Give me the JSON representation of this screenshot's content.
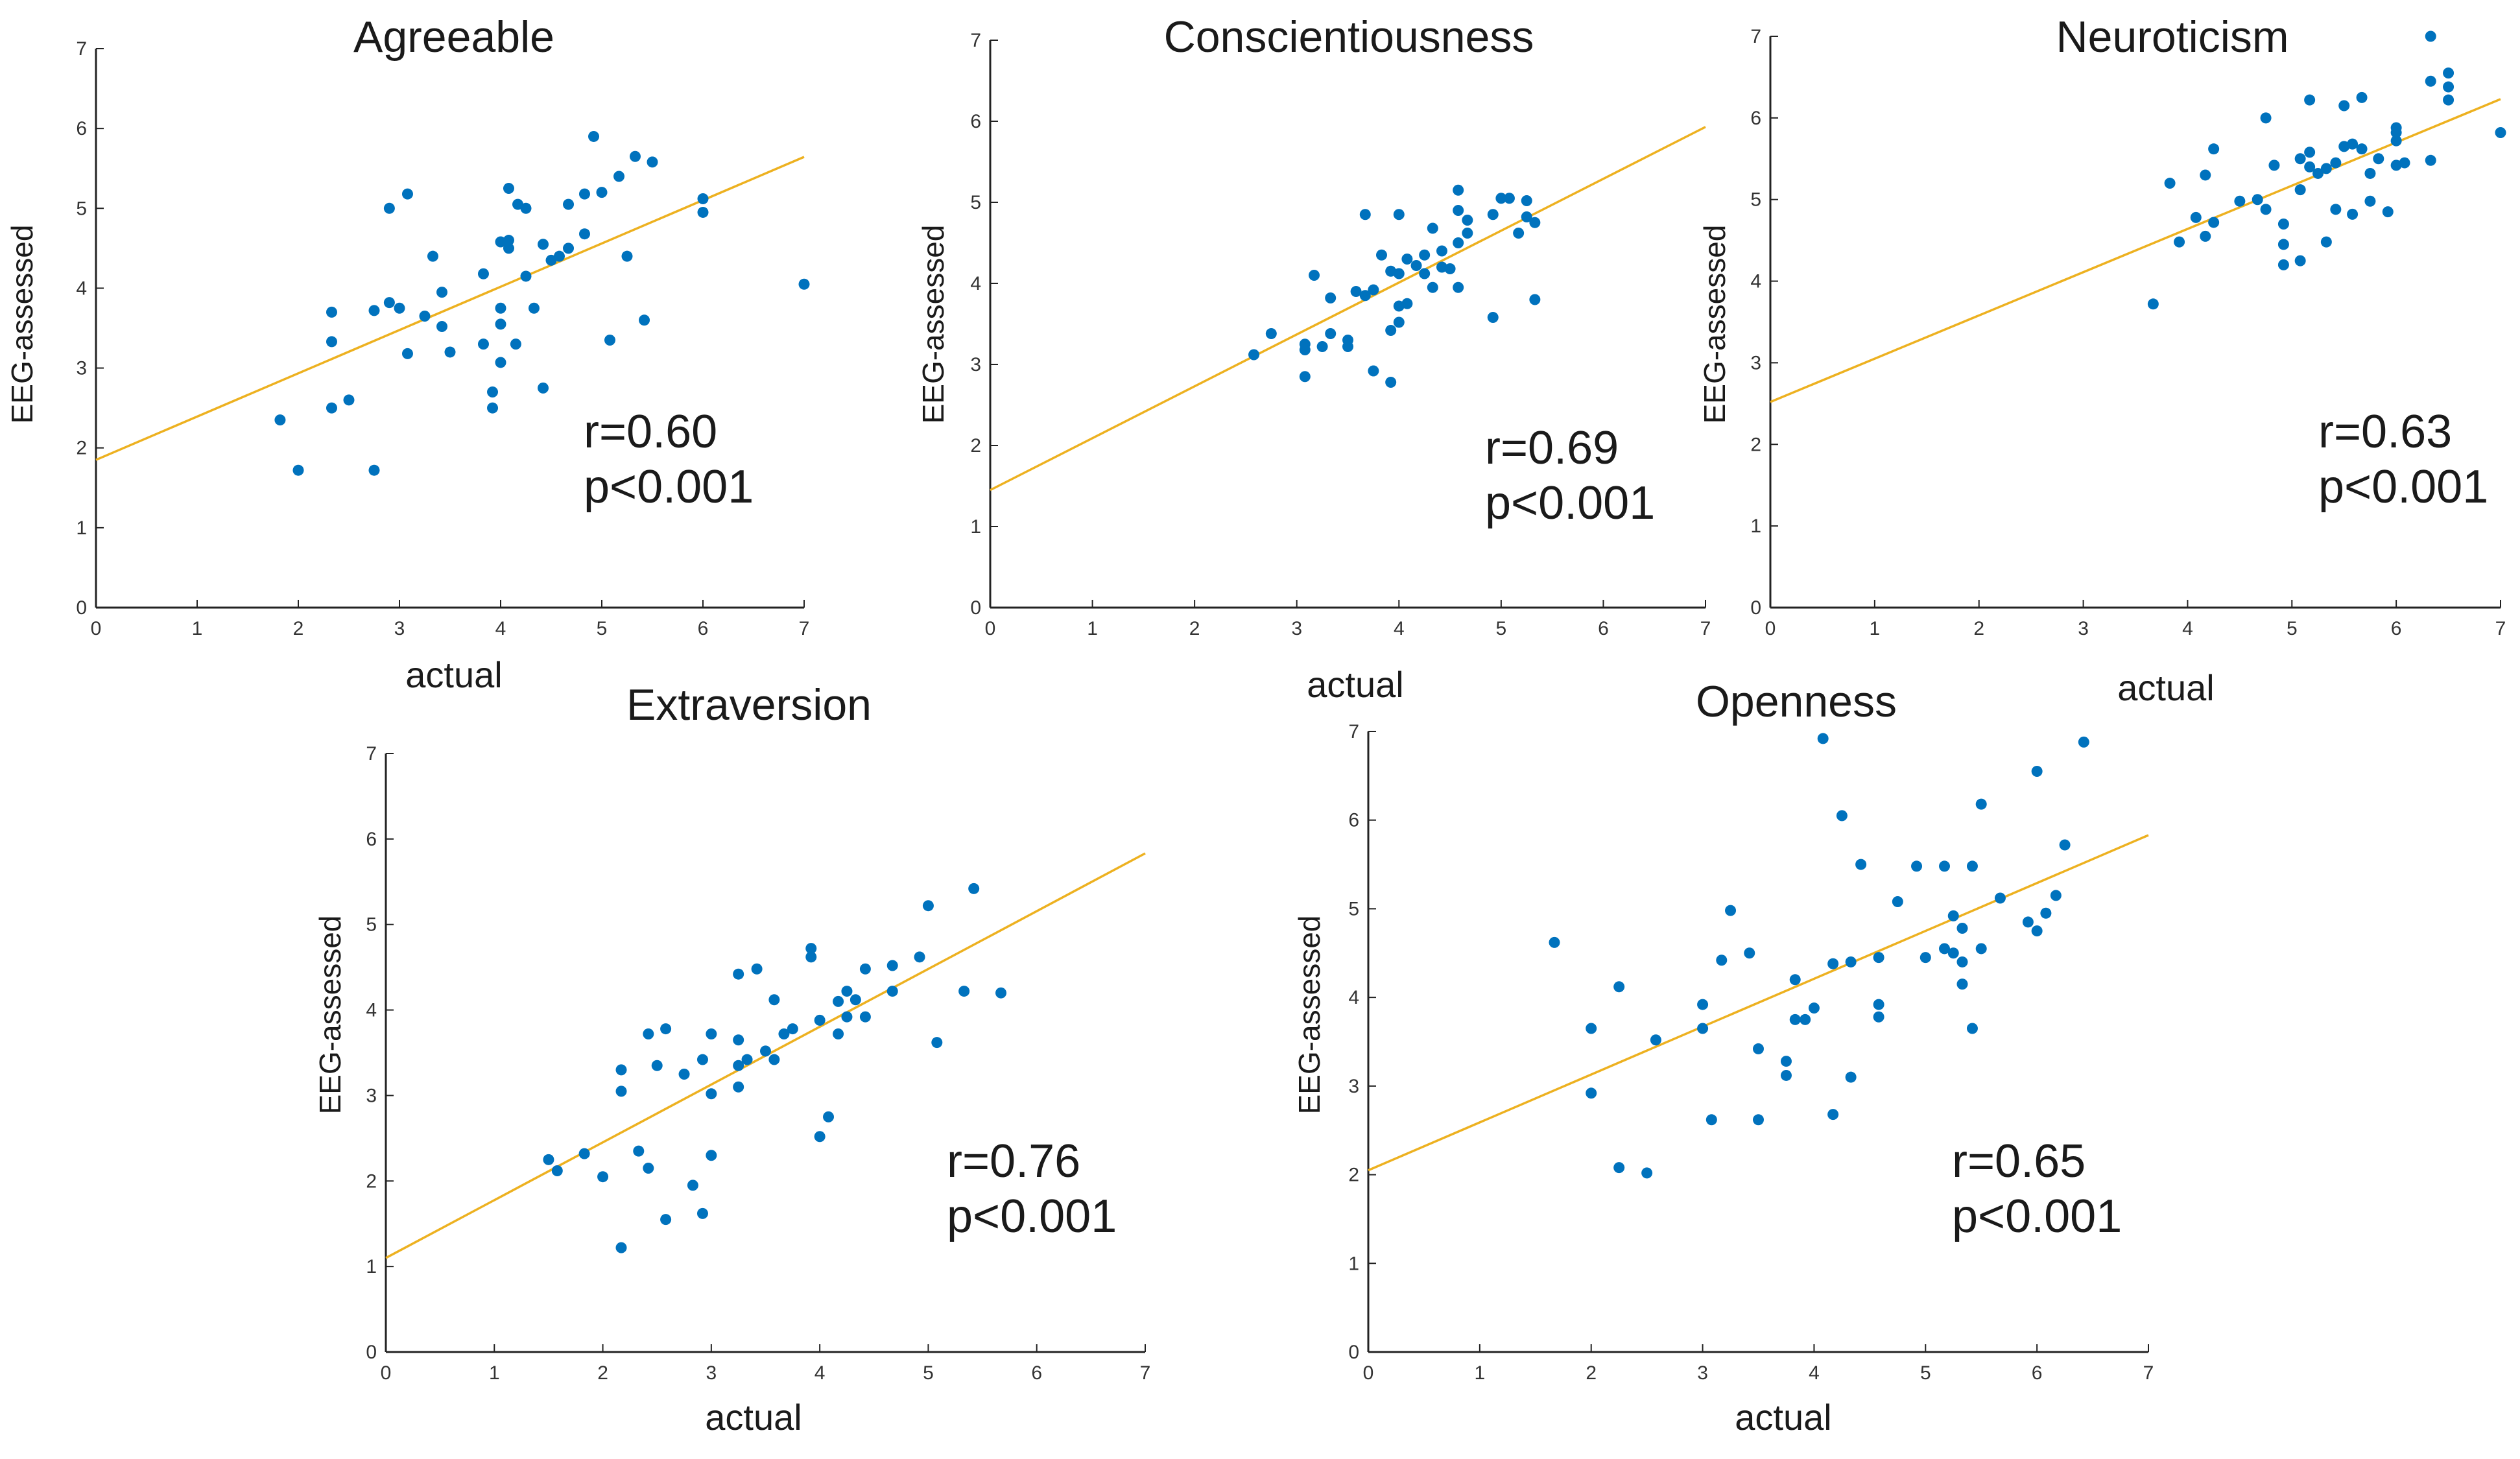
{
  "colors": {
    "points": "#0072BD",
    "fit_line": "#EDB120",
    "axes": "#222222"
  },
  "chart_data": [
    {
      "type": "scatter",
      "title": "Agreeable",
      "xlabel": "actual",
      "ylabel": "EEG-assessed",
      "xlim": [
        0,
        7
      ],
      "ylim": [
        0,
        7
      ],
      "xticks": [
        "0",
        "1",
        "2",
        "3",
        "4",
        "5",
        "6",
        "7"
      ],
      "yticks": [
        "0",
        "1",
        "2",
        "3",
        "4",
        "5",
        "6",
        "7"
      ],
      "r_text": "r=0.60",
      "p_text": "p<0.001",
      "fit": {
        "intercept": 1.85,
        "slope": 0.542
      },
      "points": [
        [
          1.82,
          2.35
        ],
        [
          2.0,
          1.72
        ],
        [
          2.33,
          3.7
        ],
        [
          2.33,
          3.33
        ],
        [
          2.33,
          2.5
        ],
        [
          2.5,
          2.6
        ],
        [
          2.75,
          1.72
        ],
        [
          2.75,
          3.72
        ],
        [
          2.9,
          3.82
        ],
        [
          2.9,
          5.0
        ],
        [
          3.0,
          3.75
        ],
        [
          3.08,
          5.18
        ],
        [
          3.08,
          3.18
        ],
        [
          3.25,
          3.65
        ],
        [
          3.33,
          4.4
        ],
        [
          3.42,
          3.95
        ],
        [
          3.42,
          3.52
        ],
        [
          3.5,
          3.2
        ],
        [
          3.83,
          4.18
        ],
        [
          3.83,
          3.3
        ],
        [
          3.92,
          2.7
        ],
        [
          3.92,
          2.5
        ],
        [
          4.0,
          4.58
        ],
        [
          4.0,
          3.75
        ],
        [
          4.0,
          3.55
        ],
        [
          4.0,
          3.07
        ],
        [
          4.08,
          5.25
        ],
        [
          4.08,
          4.6
        ],
        [
          4.08,
          4.5
        ],
        [
          4.15,
          3.3
        ],
        [
          4.17,
          5.05
        ],
        [
          4.25,
          5.0
        ],
        [
          4.25,
          4.15
        ],
        [
          4.33,
          3.75
        ],
        [
          4.42,
          4.55
        ],
        [
          4.42,
          2.75
        ],
        [
          4.5,
          4.35
        ],
        [
          4.58,
          4.4
        ],
        [
          4.67,
          4.5
        ],
        [
          4.67,
          5.05
        ],
        [
          4.83,
          4.68
        ],
        [
          4.83,
          5.18
        ],
        [
          4.92,
          5.9
        ],
        [
          5.0,
          5.2
        ],
        [
          5.08,
          3.35
        ],
        [
          5.17,
          5.4
        ],
        [
          5.25,
          4.4
        ],
        [
          5.33,
          5.65
        ],
        [
          5.42,
          3.6
        ],
        [
          5.5,
          5.58
        ],
        [
          6.0,
          5.12
        ],
        [
          6.0,
          4.95
        ],
        [
          7.0,
          4.05
        ]
      ]
    },
    {
      "type": "scatter",
      "title": "Conscientiousness",
      "xlabel": "actual",
      "ylabel": "EEG-assessed",
      "xlim": [
        0,
        7
      ],
      "ylim": [
        0,
        7
      ],
      "xticks": [
        "0",
        "1",
        "2",
        "3",
        "4",
        "5",
        "6",
        "7"
      ],
      "yticks": [
        "0",
        "1",
        "2",
        "3",
        "4",
        "5",
        "6",
        "7"
      ],
      "r_text": "r=0.69",
      "p_text": "p<0.001",
      "fit": {
        "intercept": 1.45,
        "slope": 0.64
      },
      "points": [
        [
          2.58,
          3.12
        ],
        [
          2.75,
          3.38
        ],
        [
          3.08,
          3.25
        ],
        [
          3.08,
          3.18
        ],
        [
          3.08,
          2.85
        ],
        [
          3.17,
          4.1
        ],
        [
          3.25,
          3.22
        ],
        [
          3.33,
          3.38
        ],
        [
          3.33,
          3.82
        ],
        [
          3.5,
          3.3
        ],
        [
          3.5,
          3.22
        ],
        [
          3.58,
          3.9
        ],
        [
          3.67,
          4.85
        ],
        [
          3.67,
          3.85
        ],
        [
          3.75,
          3.92
        ],
        [
          3.75,
          2.92
        ],
        [
          3.83,
          4.35
        ],
        [
          3.92,
          2.78
        ],
        [
          3.92,
          3.42
        ],
        [
          3.92,
          4.15
        ],
        [
          4.0,
          4.85
        ],
        [
          4.0,
          4.12
        ],
        [
          4.0,
          3.52
        ],
        [
          4.0,
          3.72
        ],
        [
          4.08,
          3.75
        ],
        [
          4.08,
          4.3
        ],
        [
          4.17,
          4.22
        ],
        [
          4.25,
          4.35
        ],
        [
          4.25,
          4.12
        ],
        [
          4.33,
          4.68
        ],
        [
          4.33,
          3.95
        ],
        [
          4.42,
          4.4
        ],
        [
          4.42,
          4.2
        ],
        [
          4.5,
          4.18
        ],
        [
          4.58,
          4.9
        ],
        [
          4.58,
          4.5
        ],
        [
          4.58,
          3.95
        ],
        [
          4.67,
          4.78
        ],
        [
          4.67,
          4.62
        ],
        [
          4.92,
          3.58
        ],
        [
          4.92,
          4.85
        ],
        [
          5.0,
          5.05
        ],
        [
          5.08,
          5.05
        ],
        [
          5.17,
          4.62
        ],
        [
          5.25,
          4.82
        ],
        [
          5.25,
          5.02
        ],
        [
          5.33,
          3.8
        ],
        [
          5.33,
          4.75
        ],
        [
          4.58,
          5.15
        ]
      ]
    },
    {
      "type": "scatter",
      "title": "Neuroticism",
      "xlabel": "actual",
      "ylabel": "EEG-assessed",
      "xlim": [
        0,
        7
      ],
      "ylim": [
        0,
        7
      ],
      "xticks": [
        "0",
        "1",
        "2",
        "3",
        "4",
        "5",
        "6",
        "7"
      ],
      "yticks": [
        "0",
        "1",
        "2",
        "3",
        "4",
        "5",
        "6",
        "7"
      ],
      "r_text": "r=0.63",
      "p_text": "p<0.001",
      "fit": {
        "intercept": 2.52,
        "slope": 0.53
      },
      "points": [
        [
          3.67,
          3.72
        ],
        [
          3.83,
          5.2
        ],
        [
          3.92,
          4.48
        ],
        [
          4.08,
          4.78
        ],
        [
          4.17,
          5.3
        ],
        [
          4.17,
          4.55
        ],
        [
          4.25,
          4.72
        ],
        [
          4.25,
          5.62
        ],
        [
          4.5,
          4.98
        ],
        [
          4.67,
          5.0
        ],
        [
          4.75,
          6.0
        ],
        [
          4.75,
          4.88
        ],
        [
          4.83,
          5.42
        ],
        [
          4.92,
          4.45
        ],
        [
          4.92,
          4.7
        ],
        [
          4.92,
          4.2
        ],
        [
          5.08,
          5.12
        ],
        [
          5.08,
          5.5
        ],
        [
          5.08,
          4.25
        ],
        [
          5.17,
          5.4
        ],
        [
          5.17,
          5.58
        ],
        [
          5.17,
          6.22
        ],
        [
          5.25,
          5.32
        ],
        [
          5.33,
          4.48
        ],
        [
          5.33,
          5.38
        ],
        [
          5.42,
          5.45
        ],
        [
          5.42,
          4.88
        ],
        [
          5.5,
          6.15
        ],
        [
          5.5,
          5.65
        ],
        [
          5.58,
          5.68
        ],
        [
          5.58,
          4.82
        ],
        [
          5.67,
          6.25
        ],
        [
          5.67,
          5.62
        ],
        [
          5.75,
          4.98
        ],
        [
          5.75,
          5.32
        ],
        [
          5.83,
          5.5
        ],
        [
          5.92,
          4.85
        ],
        [
          6.0,
          5.88
        ],
        [
          6.0,
          5.82
        ],
        [
          6.0,
          5.72
        ],
        [
          6.0,
          5.42
        ],
        [
          6.08,
          5.45
        ],
        [
          6.33,
          5.48
        ],
        [
          6.33,
          6.45
        ],
        [
          6.33,
          7.0
        ],
        [
          6.5,
          6.55
        ],
        [
          6.5,
          6.38
        ],
        [
          6.5,
          6.22
        ],
        [
          7.0,
          5.82
        ]
      ]
    },
    {
      "type": "scatter",
      "title": "Extraversion",
      "xlabel": "actual",
      "ylabel": "EEG-assessed",
      "xlim": [
        0,
        7
      ],
      "ylim": [
        0,
        7
      ],
      "xticks": [
        "0",
        "1",
        "2",
        "3",
        "4",
        "5",
        "6",
        "7"
      ],
      "yticks": [
        "0",
        "1",
        "2",
        "3",
        "4",
        "5",
        "6",
        "7"
      ],
      "r_text": "r=0.76",
      "p_text": "p<0.001",
      "fit": {
        "intercept": 1.1,
        "slope": 0.676
      },
      "points": [
        [
          1.5,
          2.25
        ],
        [
          1.58,
          2.12
        ],
        [
          1.83,
          2.32
        ],
        [
          2.0,
          2.05
        ],
        [
          2.17,
          3.3
        ],
        [
          2.17,
          3.05
        ],
        [
          2.17,
          1.22
        ],
        [
          2.33,
          2.35
        ],
        [
          2.42,
          3.72
        ],
        [
          2.42,
          2.15
        ],
        [
          2.5,
          3.35
        ],
        [
          2.58,
          3.78
        ],
        [
          2.58,
          1.55
        ],
        [
          2.75,
          3.25
        ],
        [
          2.83,
          1.95
        ],
        [
          2.92,
          3.42
        ],
        [
          2.92,
          1.62
        ],
        [
          3.0,
          3.72
        ],
        [
          3.0,
          3.02
        ],
        [
          3.0,
          2.3
        ],
        [
          3.25,
          4.42
        ],
        [
          3.25,
          3.65
        ],
        [
          3.25,
          3.35
        ],
        [
          3.25,
          3.1
        ],
        [
          3.33,
          3.42
        ],
        [
          3.42,
          4.48
        ],
        [
          3.5,
          3.52
        ],
        [
          3.58,
          3.42
        ],
        [
          3.58,
          4.12
        ],
        [
          3.67,
          3.72
        ],
        [
          3.75,
          3.78
        ],
        [
          3.92,
          4.72
        ],
        [
          3.92,
          4.62
        ],
        [
          4.0,
          3.88
        ],
        [
          4.0,
          2.52
        ],
        [
          4.08,
          2.75
        ],
        [
          4.17,
          4.1
        ],
        [
          4.17,
          3.72
        ],
        [
          4.25,
          3.92
        ],
        [
          4.25,
          4.22
        ],
        [
          4.33,
          4.12
        ],
        [
          4.42,
          3.92
        ],
        [
          4.42,
          4.48
        ],
        [
          4.67,
          4.52
        ],
        [
          4.92,
          4.62
        ],
        [
          5.0,
          5.22
        ],
        [
          5.08,
          3.62
        ],
        [
          5.33,
          4.22
        ],
        [
          5.42,
          5.42
        ],
        [
          5.67,
          4.2
        ],
        [
          4.67,
          4.22
        ]
      ]
    },
    {
      "type": "scatter",
      "title": "Openness",
      "xlabel": "actual",
      "ylabel": "EEG-assessed",
      "xlim": [
        0,
        7
      ],
      "ylim": [
        0,
        7
      ],
      "xticks": [
        "0",
        "1",
        "2",
        "3",
        "4",
        "5",
        "6",
        "7"
      ],
      "yticks": [
        "0",
        "1",
        "2",
        "3",
        "4",
        "5",
        "6",
        "7"
      ],
      "r_text": "r=0.65",
      "p_text": "p<0.001",
      "fit": {
        "intercept": 2.05,
        "slope": 0.54
      },
      "points": [
        [
          1.67,
          4.62
        ],
        [
          2.0,
          3.65
        ],
        [
          2.0,
          2.92
        ],
        [
          2.25,
          4.12
        ],
        [
          2.25,
          2.08
        ],
        [
          2.5,
          2.02
        ],
        [
          2.58,
          3.52
        ],
        [
          3.0,
          3.92
        ],
        [
          3.0,
          3.65
        ],
        [
          3.08,
          2.62
        ],
        [
          3.17,
          4.42
        ],
        [
          3.25,
          4.98
        ],
        [
          3.42,
          4.5
        ],
        [
          3.5,
          3.42
        ],
        [
          3.5,
          2.62
        ],
        [
          3.75,
          3.28
        ],
        [
          3.75,
          3.12
        ],
        [
          3.83,
          4.2
        ],
        [
          3.83,
          3.75
        ],
        [
          3.92,
          3.75
        ],
        [
          4.0,
          3.88
        ],
        [
          4.08,
          6.92
        ],
        [
          4.17,
          4.38
        ],
        [
          4.17,
          2.68
        ],
        [
          4.25,
          6.05
        ],
        [
          4.33,
          4.4
        ],
        [
          4.33,
          3.1
        ],
        [
          4.42,
          5.5
        ],
        [
          4.58,
          4.45
        ],
        [
          4.58,
          3.92
        ],
        [
          4.58,
          3.78
        ],
        [
          4.75,
          5.08
        ],
        [
          4.92,
          5.48
        ],
        [
          5.0,
          4.45
        ],
        [
          5.17,
          5.48
        ],
        [
          5.17,
          4.55
        ],
        [
          5.25,
          4.92
        ],
        [
          5.25,
          4.5
        ],
        [
          5.33,
          4.4
        ],
        [
          5.33,
          4.78
        ],
        [
          5.33,
          4.15
        ],
        [
          5.42,
          5.48
        ],
        [
          5.42,
          3.65
        ],
        [
          5.5,
          6.18
        ],
        [
          5.5,
          4.55
        ],
        [
          5.67,
          5.12
        ],
        [
          5.92,
          4.85
        ],
        [
          6.0,
          6.55
        ],
        [
          6.0,
          4.75
        ],
        [
          6.08,
          4.95
        ],
        [
          6.17,
          5.15
        ],
        [
          6.25,
          5.72
        ],
        [
          6.42,
          6.88
        ]
      ]
    }
  ]
}
